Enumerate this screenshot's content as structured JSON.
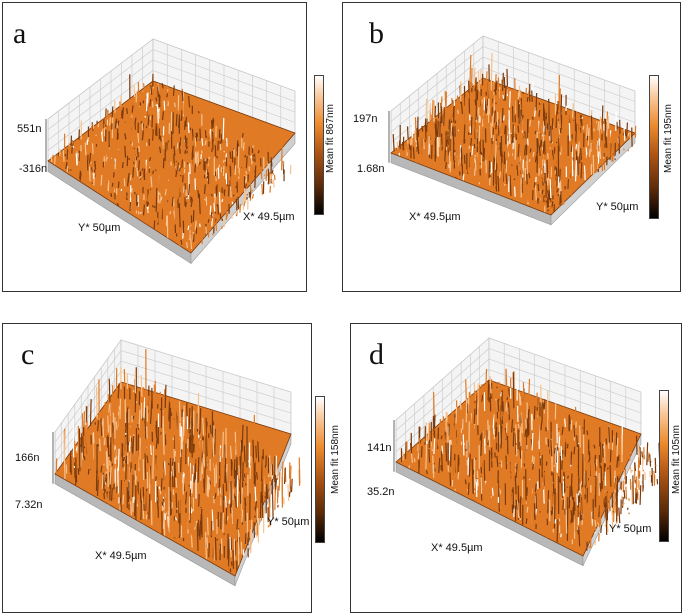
{
  "panels": [
    {
      "letter": "a",
      "zmax": "551n",
      "zmin": "-316n",
      "front_axis": "Y* 50µm",
      "side_axis": "X* 49.5µm",
      "colorbar": "Mean fit 867nm"
    },
    {
      "letter": "b",
      "zmax": "197n",
      "zmin": "1.68n",
      "front_axis": "X* 49.5µm",
      "side_axis": "Y* 50µm",
      "colorbar": "Mean fit 195nm"
    },
    {
      "letter": "c",
      "zmax": "166n",
      "zmin": "7.32n",
      "front_axis": "X* 49.5µm",
      "side_axis": "Y* 50µm",
      "colorbar": "Mean fit 158nm"
    },
    {
      "letter": "d",
      "zmax": "141n",
      "zmin": "35.2n",
      "front_axis": "X* 49.5µm",
      "side_axis": "Y* 50µm",
      "colorbar": "Mean fit 105nm"
    }
  ],
  "colors": {
    "surface": "#e07a25",
    "surface_dark": "#7a3a0c",
    "surface_light": "#f7c28c",
    "grid": "#c8c8c8"
  }
}
